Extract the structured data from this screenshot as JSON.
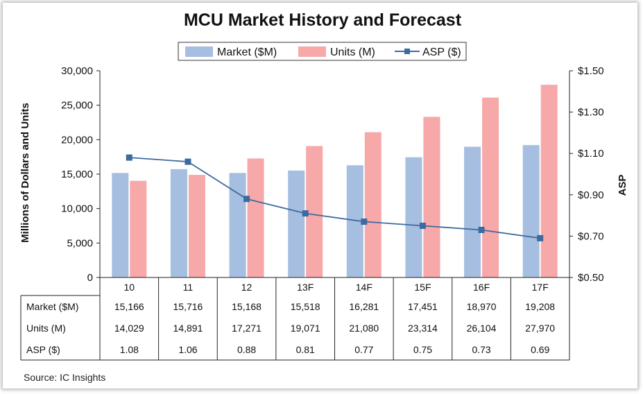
{
  "chart_data": {
    "type": "bar",
    "title": "MCU Market History and Forecast",
    "categories": [
      "10",
      "11",
      "12",
      "13F",
      "14F",
      "15F",
      "16F",
      "17F"
    ],
    "series": [
      {
        "name": "Market ($M)",
        "kind": "bar",
        "axis": "left",
        "color": "#a6bedf",
        "values": [
          15166,
          15716,
          15168,
          15518,
          16281,
          17451,
          18970,
          19208
        ],
        "labels": [
          "15,166",
          "15,716",
          "15,168",
          "15,518",
          "16,281",
          "17,451",
          "18,970",
          "19,208"
        ]
      },
      {
        "name": "Units (M)",
        "kind": "bar",
        "axis": "left",
        "color": "#f7a8a9",
        "values": [
          14029,
          14891,
          17271,
          19071,
          21080,
          23314,
          26104,
          27970
        ],
        "labels": [
          "14,029",
          "14,891",
          "17,271",
          "19,071",
          "21,080",
          "23,314",
          "26,104",
          "27,970"
        ]
      },
      {
        "name": "ASP ($)",
        "kind": "line",
        "axis": "right",
        "color": "#3d6aa0",
        "values": [
          1.08,
          1.06,
          0.88,
          0.81,
          0.77,
          0.75,
          0.73,
          0.69
        ],
        "labels": [
          "1.08",
          "1.06",
          "0.88",
          "0.81",
          "0.77",
          "0.75",
          "0.73",
          "0.69"
        ]
      }
    ],
    "ylabel": "Millions of Dollars and Units",
    "y2label": "ASP",
    "ylim": [
      0,
      30000
    ],
    "y2lim": [
      0.5,
      1.5
    ],
    "yticks": [
      "0",
      "5,000",
      "10,000",
      "15,000",
      "20,000",
      "25,000",
      "30,000"
    ],
    "y2ticks": [
      "$0.50",
      "$0.70",
      "$0.90",
      "$1.10",
      "$1.30",
      "$1.50"
    ],
    "legend_position": "top",
    "grid": false,
    "source": "Source:  IC Insights"
  }
}
